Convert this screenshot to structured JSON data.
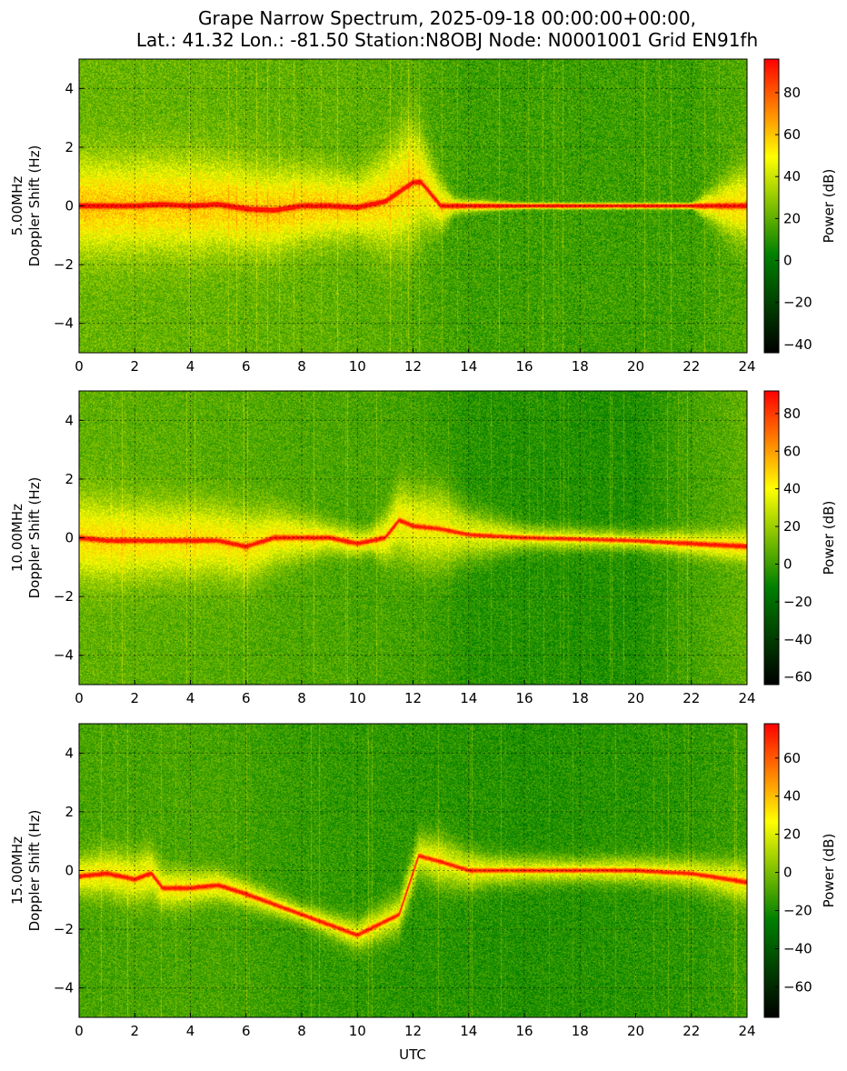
{
  "figure": {
    "title_line1": "Grape Narrow Spectrum, 2025-09-18 00:00:00+00:00,",
    "title_line2": "Lat.: 41.32 Lon.: -81.50 Station:N8OBJ Node: N0001001 Grid EN91fh",
    "xlabel": "UTC"
  },
  "colors": {
    "colormap": [
      "#000000",
      "#008000",
      "#ffff00",
      "#ff0000"
    ]
  },
  "chart_data": [
    {
      "type": "heatmap",
      "ylabel": "5.00MHz\nDoppler Shift (Hz)",
      "xlabel": "",
      "colorbar_label": "Power (dB)",
      "x_ticks": [
        0,
        2,
        4,
        6,
        8,
        10,
        12,
        14,
        16,
        18,
        20,
        22,
        24
      ],
      "y_ticks": [
        4,
        2,
        0,
        -2,
        -4
      ],
      "cbar_ticks": [
        80,
        60,
        40,
        20,
        0,
        -20,
        -40
      ],
      "xlim": [
        0,
        24
      ],
      "ylim": [
        -5,
        5
      ],
      "clim": [
        -44,
        96
      ],
      "grid": true,
      "trace": [
        [
          0,
          0.0
        ],
        [
          1,
          0.0
        ],
        [
          2,
          0.0
        ],
        [
          3,
          0.05
        ],
        [
          4,
          0.0
        ],
        [
          5,
          0.05
        ],
        [
          6,
          -0.1
        ],
        [
          7,
          -0.15
        ],
        [
          8,
          0.0
        ],
        [
          9,
          0.0
        ],
        [
          10,
          -0.05
        ],
        [
          11,
          0.15
        ],
        [
          12,
          0.8
        ],
        [
          12.3,
          0.8
        ],
        [
          13,
          0.0
        ],
        [
          24,
          0.0
        ]
      ],
      "spread_hz": [
        [
          0,
          1.8
        ],
        [
          2,
          1.8
        ],
        [
          4,
          1.8
        ],
        [
          6,
          1.7
        ],
        [
          8,
          1.5
        ],
        [
          10,
          1.2
        ],
        [
          11,
          1.8
        ],
        [
          12,
          2.3
        ],
        [
          12.5,
          1.5
        ],
        [
          13.5,
          0.3
        ],
        [
          16,
          0.1
        ],
        [
          22,
          0.1
        ],
        [
          23.5,
          1.2
        ],
        [
          24,
          1.4
        ]
      ],
      "background_db": [
        [
          0,
          22
        ],
        [
          10,
          20
        ],
        [
          12,
          18
        ],
        [
          14,
          14
        ],
        [
          22,
          14
        ],
        [
          24,
          18
        ]
      ]
    },
    {
      "type": "heatmap",
      "ylabel": "10.00MHz\nDoppler Shift (Hz)",
      "xlabel": "",
      "colorbar_label": "Power (dB)",
      "x_ticks": [
        0,
        2,
        4,
        6,
        8,
        10,
        12,
        14,
        16,
        18,
        20,
        22,
        24
      ],
      "y_ticks": [
        4,
        2,
        0,
        -2,
        -4
      ],
      "cbar_ticks": [
        80,
        60,
        40,
        20,
        0,
        -20,
        -40,
        -60
      ],
      "xlim": [
        0,
        24
      ],
      "ylim": [
        -5,
        5
      ],
      "clim": [
        -64,
        92
      ],
      "grid": true,
      "trace": [
        [
          0,
          0.0
        ],
        [
          1,
          -0.1
        ],
        [
          2,
          -0.1
        ],
        [
          3,
          -0.1
        ],
        [
          4,
          -0.1
        ],
        [
          5,
          -0.1
        ],
        [
          6,
          -0.3
        ],
        [
          7,
          0.0
        ],
        [
          8,
          0.0
        ],
        [
          9,
          0.0
        ],
        [
          10,
          -0.2
        ],
        [
          11,
          0.0
        ],
        [
          11.5,
          0.6
        ],
        [
          12,
          0.4
        ],
        [
          13,
          0.3
        ],
        [
          14,
          0.1
        ],
        [
          16,
          0.0
        ],
        [
          20,
          -0.1
        ],
        [
          24,
          -0.3
        ]
      ],
      "spread_hz": [
        [
          0,
          1.6
        ],
        [
          3,
          1.5
        ],
        [
          6,
          1.4
        ],
        [
          7.5,
          1.0
        ],
        [
          9,
          0.6
        ],
        [
          10.5,
          0.5
        ],
        [
          11.5,
          1.4
        ],
        [
          13,
          1.6
        ],
        [
          14,
          1.0
        ],
        [
          16,
          0.5
        ],
        [
          20,
          0.4
        ],
        [
          22,
          0.5
        ],
        [
          24,
          0.6
        ]
      ],
      "background_db": [
        [
          0,
          8
        ],
        [
          8,
          4
        ],
        [
          12,
          2
        ],
        [
          14,
          -4
        ],
        [
          20,
          -6
        ],
        [
          22,
          2
        ],
        [
          24,
          8
        ]
      ]
    },
    {
      "type": "heatmap",
      "ylabel": "15.00MHz\nDoppler Shift (Hz)",
      "xlabel": "UTC",
      "colorbar_label": "Power (dB)",
      "x_ticks": [
        0,
        2,
        4,
        6,
        8,
        10,
        12,
        14,
        16,
        18,
        20,
        22,
        24
      ],
      "y_ticks": [
        4,
        2,
        0,
        -2,
        -4
      ],
      "cbar_ticks": [
        60,
        40,
        20,
        0,
        -20,
        -40,
        -60
      ],
      "xlim": [
        0,
        24
      ],
      "ylim": [
        -5,
        5
      ],
      "clim": [
        -76,
        78
      ],
      "grid": true,
      "trace": [
        [
          0,
          -0.2
        ],
        [
          1,
          -0.1
        ],
        [
          2,
          -0.3
        ],
        [
          2.6,
          -0.1
        ],
        [
          3.0,
          -0.6
        ],
        [
          4,
          -0.6
        ],
        [
          5,
          -0.5
        ],
        [
          6,
          -0.8
        ],
        [
          8,
          -1.5
        ],
        [
          10,
          -2.2
        ],
        [
          11.5,
          -1.5
        ],
        [
          12.2,
          0.5
        ],
        [
          13,
          0.3
        ],
        [
          14,
          0.0
        ],
        [
          16,
          0.0
        ],
        [
          18,
          0.0
        ],
        [
          20,
          0.0
        ],
        [
          22,
          -0.1
        ],
        [
          24,
          -0.4
        ]
      ],
      "spread_hz": [
        [
          0,
          0.8
        ],
        [
          2.5,
          1.0
        ],
        [
          3.0,
          0.8
        ],
        [
          5,
          0.6
        ],
        [
          8,
          0.4
        ],
        [
          12,
          0.8
        ],
        [
          13,
          1.0
        ],
        [
          15,
          0.6
        ],
        [
          18,
          0.5
        ],
        [
          22,
          0.6
        ],
        [
          24,
          0.8
        ]
      ],
      "background_db": [
        [
          0,
          -10
        ],
        [
          5,
          -10
        ],
        [
          8,
          -14
        ],
        [
          12,
          -16
        ],
        [
          16,
          -18
        ],
        [
          22,
          -16
        ],
        [
          24,
          -12
        ]
      ]
    }
  ]
}
